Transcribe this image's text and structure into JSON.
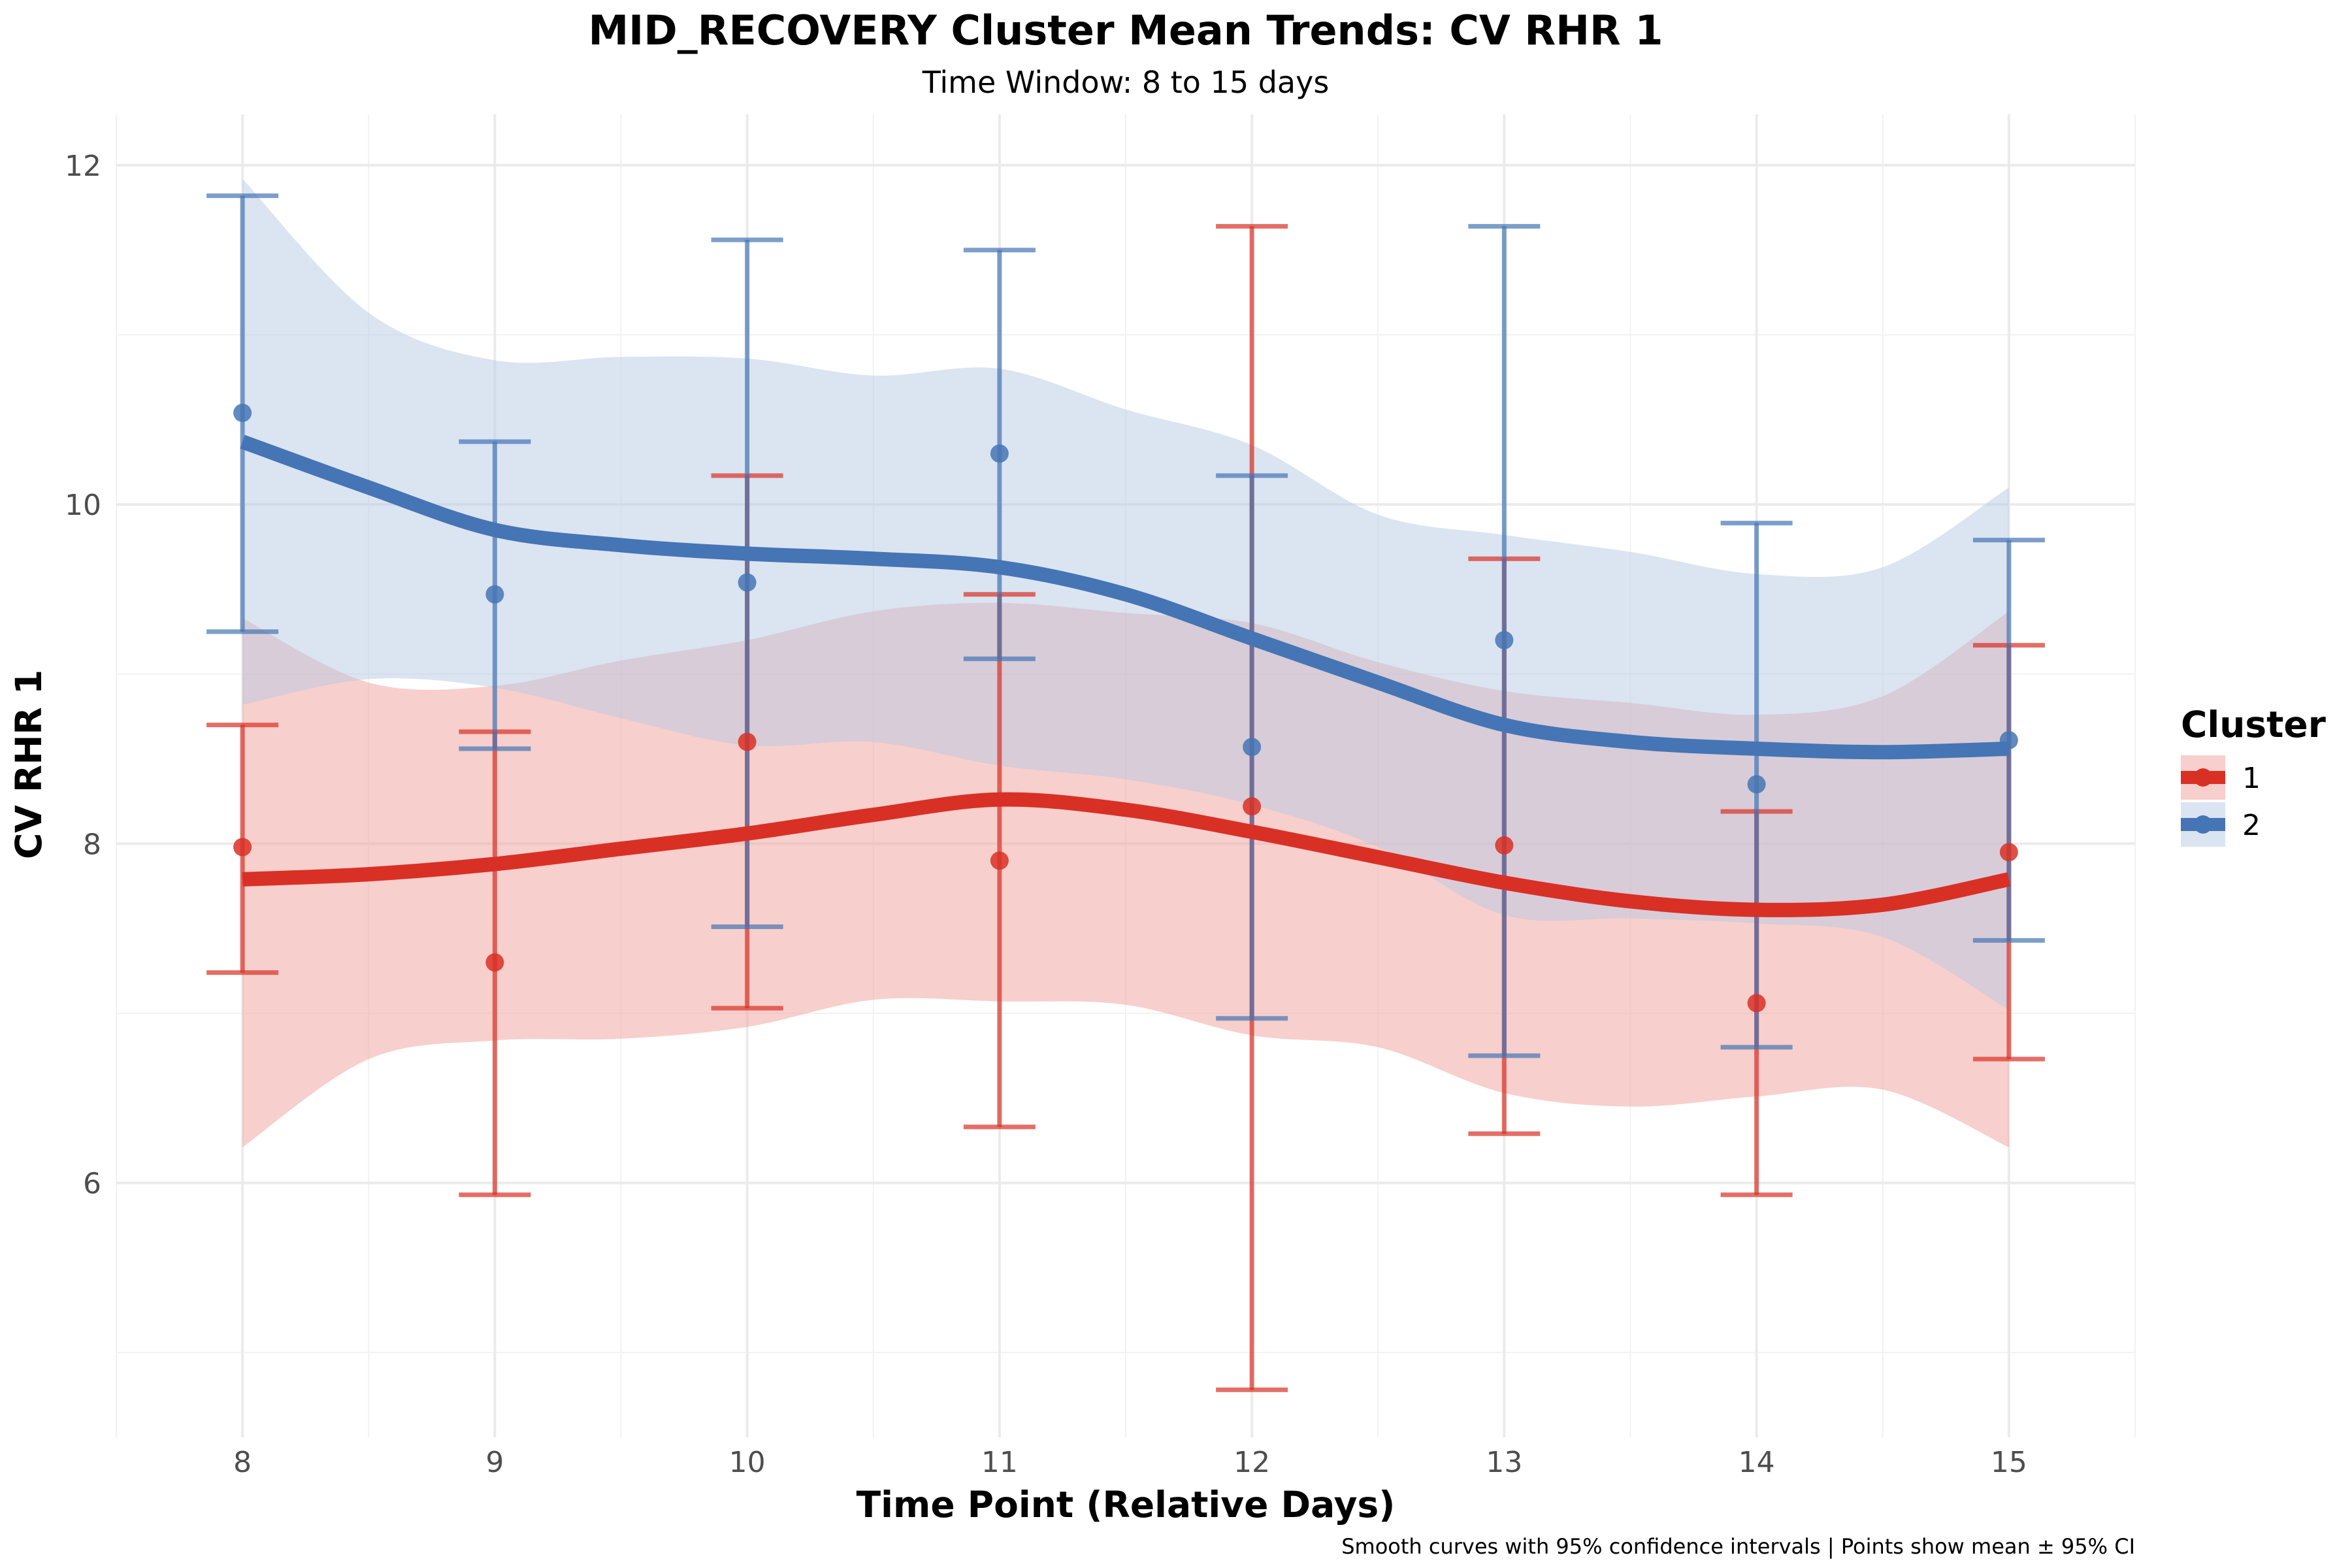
{
  "chart_data": {
    "type": "line",
    "title": "MID_RECOVERY Cluster Mean Trends: CV RHR 1",
    "subtitle": "Time Window: 8 to 15 days",
    "xlabel": "Time Point (Relative Days)",
    "ylabel": "CV RHR 1",
    "caption": "Smooth curves with 95% confidence intervals | Points show mean ± 95% CI",
    "x": [
      8,
      9,
      10,
      11,
      12,
      13,
      14,
      15
    ],
    "xlim": [
      7.5,
      15.5
    ],
    "ylim": [
      4.5,
      12.3
    ],
    "x_ticks": [
      8,
      9,
      10,
      11,
      12,
      13,
      14,
      15
    ],
    "y_ticks": [
      6,
      8,
      10,
      12
    ],
    "grid": true,
    "legend": {
      "title": "Cluster",
      "position": "right"
    },
    "series": [
      {
        "name": "1",
        "color": "#D93025",
        "band_color": "#F0A09A",
        "means": [
          7.98,
          7.3,
          8.6,
          7.9,
          8.22,
          7.99,
          7.06,
          7.95
        ],
        "ci_low": [
          7.24,
          5.93,
          7.03,
          6.33,
          4.78,
          6.29,
          5.93,
          6.73
        ],
        "ci_high": [
          8.7,
          8.66,
          10.17,
          9.47,
          11.64,
          9.68,
          8.19,
          9.17
        ],
        "smooth_x": [
          8,
          8.5,
          9,
          9.5,
          10,
          10.5,
          11,
          11.5,
          12,
          12.5,
          13,
          13.5,
          14,
          14.5,
          15
        ],
        "smooth": [
          7.79,
          7.82,
          7.88,
          7.97,
          8.06,
          8.17,
          8.26,
          8.2,
          8.07,
          7.92,
          7.77,
          7.66,
          7.61,
          7.64,
          7.79
        ],
        "band_low": [
          6.21,
          6.73,
          6.84,
          6.85,
          6.92,
          7.08,
          7.07,
          7.05,
          6.87,
          6.8,
          6.53,
          6.45,
          6.51,
          6.55,
          6.21
        ],
        "band_high": [
          9.33,
          8.95,
          8.93,
          9.08,
          9.2,
          9.37,
          9.42,
          9.36,
          9.3,
          9.07,
          8.9,
          8.83,
          8.76,
          8.87,
          9.37
        ]
      },
      {
        "name": "2",
        "color": "#4575B4",
        "band_color": "#B8C9E3",
        "means": [
          10.54,
          9.47,
          9.54,
          10.3,
          8.57,
          9.2,
          8.35,
          8.61
        ],
        "ci_low": [
          9.25,
          8.56,
          7.51,
          9.09,
          6.97,
          6.75,
          6.8,
          7.43
        ],
        "ci_high": [
          11.82,
          10.37,
          11.56,
          11.5,
          10.17,
          11.64,
          9.89,
          9.79
        ],
        "smooth_x": [
          8,
          8.5,
          9,
          9.5,
          10,
          10.5,
          11,
          11.5,
          12,
          12.5,
          13,
          13.5,
          14,
          14.5,
          15
        ],
        "smooth": [
          10.37,
          10.1,
          9.85,
          9.76,
          9.71,
          9.68,
          9.63,
          9.47,
          9.21,
          8.95,
          8.7,
          8.6,
          8.56,
          8.54,
          8.56
        ],
        "band_low": [
          8.82,
          8.97,
          8.92,
          8.74,
          8.58,
          8.6,
          8.46,
          8.38,
          8.23,
          7.98,
          7.58,
          7.56,
          7.53,
          7.45,
          7.02
        ],
        "band_high": [
          11.92,
          11.13,
          10.85,
          10.87,
          10.86,
          10.76,
          10.8,
          10.56,
          10.35,
          9.94,
          9.82,
          9.72,
          9.59,
          9.63,
          10.1
        ]
      }
    ]
  }
}
